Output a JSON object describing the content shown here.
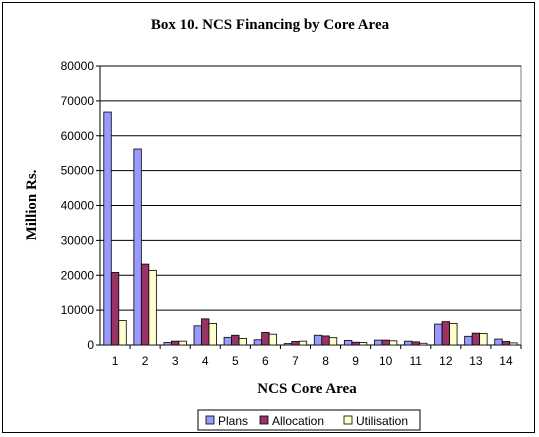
{
  "chart_data": {
    "type": "bar",
    "title": "Box 10.  NCS Financing by Core Area",
    "xlabel": "NCS Core Area",
    "ylabel": "Million Rs.",
    "ylim": [
      0,
      80000
    ],
    "yticks": [
      "0",
      "10000",
      "20000",
      "30000",
      "40000",
      "50000",
      "60000",
      "70000",
      "80000"
    ],
    "categories": [
      "1",
      "2",
      "3",
      "4",
      "5",
      "6",
      "7",
      "8",
      "9",
      "10",
      "11",
      "12",
      "13",
      "14"
    ],
    "series": [
      {
        "name": "Plans",
        "color": "#9999FF",
        "values": [
          66800,
          56200,
          700,
          5500,
          2200,
          1500,
          400,
          2800,
          1300,
          1400,
          1100,
          6000,
          2500,
          1700
        ]
      },
      {
        "name": "Allocation",
        "color": "#993366",
        "values": [
          20800,
          23200,
          1100,
          7500,
          2800,
          3600,
          1000,
          2600,
          800,
          1400,
          900,
          6700,
          3400,
          1000
        ]
      },
      {
        "name": "Utilisation",
        "color": "#FFFFCC",
        "values": [
          7000,
          21400,
          1100,
          6200,
          1900,
          3100,
          1100,
          2100,
          700,
          1200,
          500,
          6200,
          3300,
          600
        ]
      }
    ],
    "grid": true,
    "legend_position": "bottom"
  }
}
